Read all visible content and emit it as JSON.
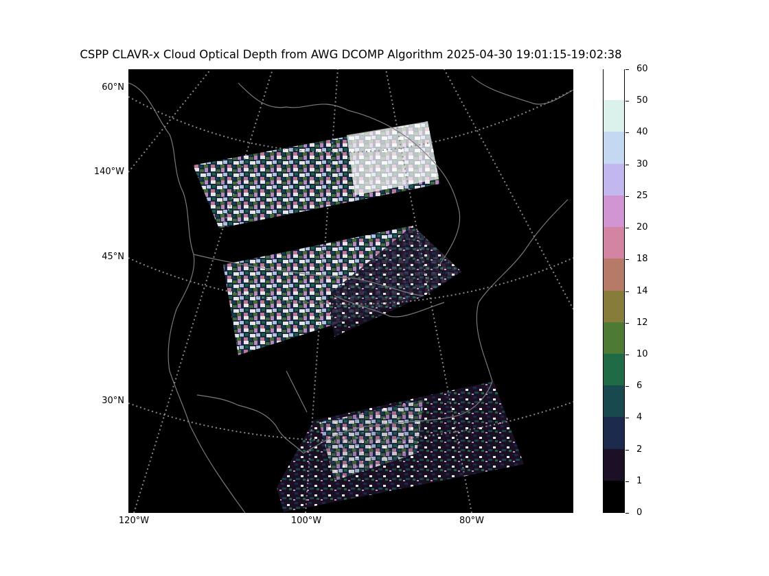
{
  "title": "CSPP CLAVR-x Cloud Optical Depth from AWG DCOMP Algorithm 2025-04-30 19:01:15-19:02:38",
  "lat_labels": [
    "60°N",
    "140°W",
    "45°N",
    "30°N"
  ],
  "lon_labels": [
    "120°W",
    "100°W",
    "80°W"
  ],
  "colorbar": {
    "tick_labels": [
      "0",
      "1",
      "2",
      "4",
      "6",
      "10",
      "12",
      "14",
      "18",
      "20",
      "25",
      "30",
      "40",
      "50",
      "60"
    ],
    "colors": [
      "#000000",
      "#1c1026",
      "#1b2a4d",
      "#17494f",
      "#1e6b46",
      "#4d7b35",
      "#887c3a",
      "#b57b68",
      "#d284a2",
      "#d295d4",
      "#c2b7ef",
      "#c4d8f2",
      "#dbf1ec",
      "#ffffff"
    ]
  },
  "map_colors": {
    "background": "#000000",
    "coastline": "#7a7a7a",
    "graticule": "#8a8a8a"
  }
}
